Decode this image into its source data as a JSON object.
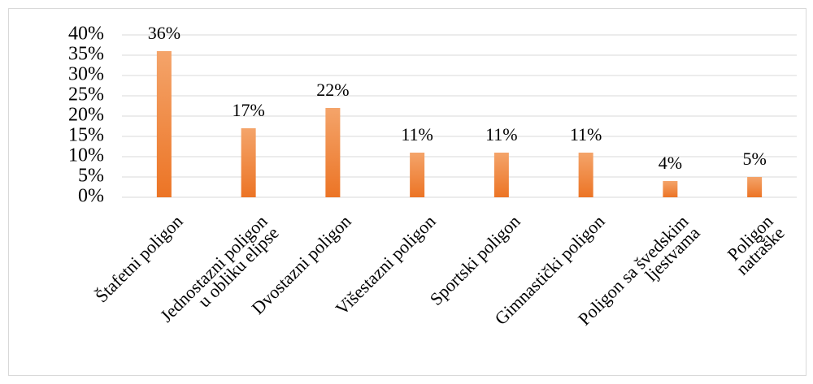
{
  "chart_data": {
    "type": "bar",
    "categories": [
      "Štafetni poligon",
      "Jednostazni poligon\nu obliku elipse",
      "Dvostazni poligon",
      "Višestazni poligon",
      "Sportski poligon",
      "Gimnastički poligon",
      "Poligon sa švedskim\nljestvama",
      "Poligon\nnatraške"
    ],
    "values": [
      36,
      17,
      22,
      11,
      11,
      11,
      4,
      5
    ],
    "value_labels": [
      "36%",
      "17%",
      "22%",
      "11%",
      "11%",
      "11%",
      "4%",
      "5%"
    ],
    "color": "#ef7f2e",
    "ylim": [
      0,
      40
    ],
    "yticks": [
      {
        "value": 0,
        "label": "0%"
      },
      {
        "value": 5,
        "label": "5%"
      },
      {
        "value": 10,
        "label": "10%"
      },
      {
        "value": 15,
        "label": "15%"
      },
      {
        "value": 20,
        "label": "20%"
      },
      {
        "value": 25,
        "label": "25%"
      },
      {
        "value": 30,
        "label": "30%"
      },
      {
        "value": 35,
        "label": "35%"
      },
      {
        "value": 40,
        "label": "40%"
      }
    ],
    "grid": true
  }
}
